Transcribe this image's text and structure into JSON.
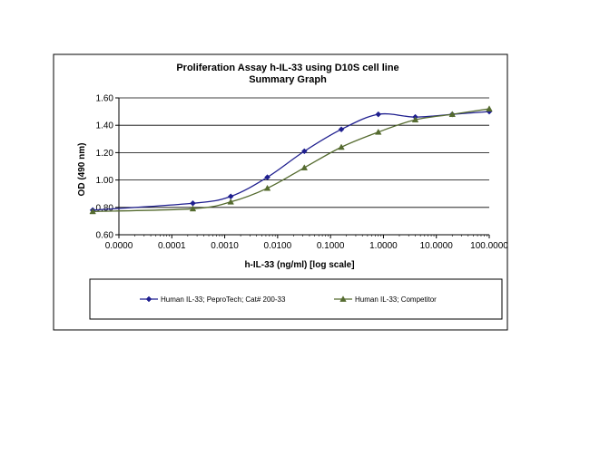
{
  "chart_data": {
    "type": "line",
    "title": "Proliferation Assay h-IL-33 using D10S cell line",
    "subtitle": "Summary Graph",
    "xlabel": "h-IL-33 (ng/ml) [log scale]",
    "ylabel": "OD (490 nm)",
    "x_scale": "log",
    "x_tick_labels": [
      "0.0000",
      "0.0001",
      "0.0010",
      "0.0100",
      "0.1000",
      "1.0000",
      "10.0000",
      "100.0000"
    ],
    "y_tick_labels": [
      "0.60",
      "0.80",
      "1.00",
      "1.20",
      "1.40",
      "1.60"
    ],
    "ylim": [
      0.6,
      1.6
    ],
    "grid": "horizontal",
    "legend_position": "bottom",
    "series": [
      {
        "name": "Human IL-33; PeproTech; Cat# 200-33",
        "color": "#1f1f8f",
        "marker": "diamond",
        "x": [
          3.2e-06,
          0.00025,
          0.0013,
          0.0064,
          0.032,
          0.16,
          0.8,
          4.0,
          20.0,
          100.0
        ],
        "y": [
          0.78,
          0.83,
          0.88,
          1.02,
          1.21,
          1.37,
          1.48,
          1.46,
          1.48,
          1.5
        ]
      },
      {
        "name": "Human IL-33; Competitor",
        "color": "#556b2f",
        "marker": "triangle",
        "x": [
          3.2e-06,
          0.00025,
          0.0013,
          0.0064,
          0.032,
          0.16,
          0.8,
          4.0,
          20.0,
          100.0
        ],
        "y": [
          0.77,
          0.79,
          0.84,
          0.94,
          1.09,
          1.24,
          1.35,
          1.44,
          1.48,
          1.52
        ]
      }
    ]
  }
}
